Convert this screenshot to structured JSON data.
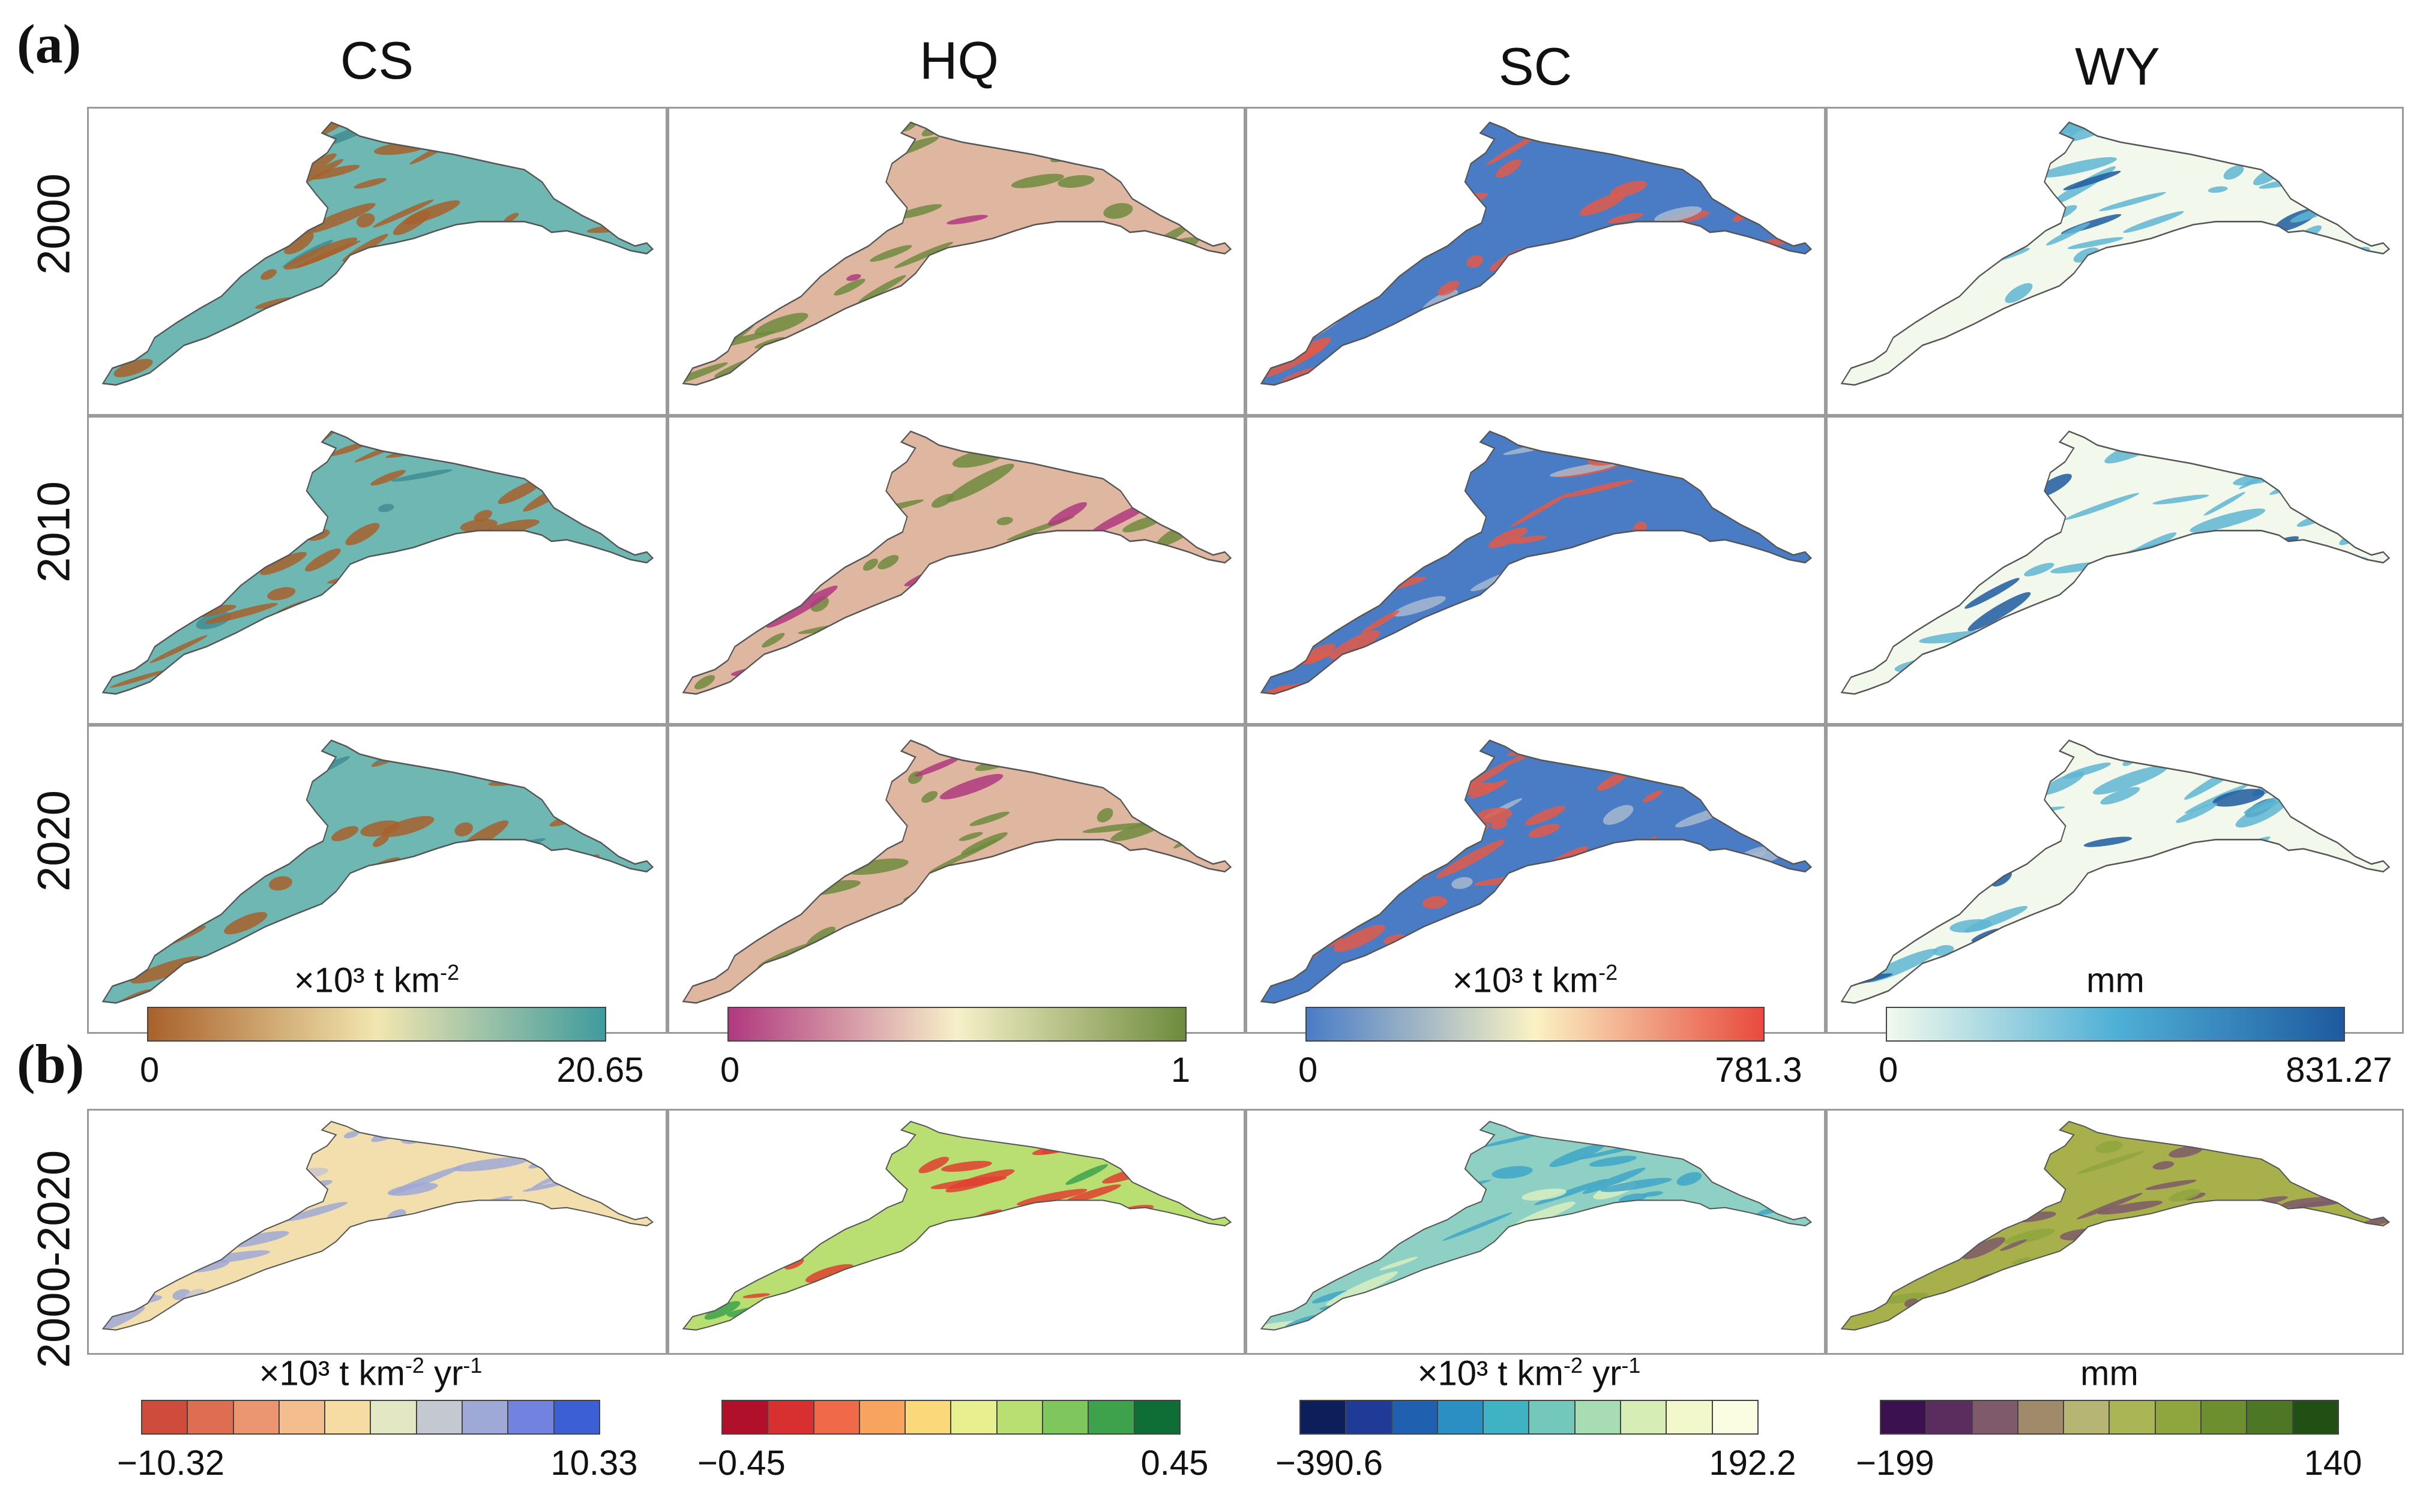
{
  "panel_a_label": "(a)",
  "panel_b_label": "(b)",
  "columns": [
    "CS",
    "HQ",
    "SC",
    "WY"
  ],
  "rows_a": [
    "2000",
    "2010",
    "2020"
  ],
  "row_b": "2000-2020",
  "colorbars_a": [
    {
      "title_main": "×10³ t km",
      "title_sup": "-2",
      "title_tail": "",
      "min": "0",
      "max": "20.65",
      "colors": [
        "#a8612b",
        "#f2e6b0",
        "#3f9b9e"
      ]
    },
    {
      "title_main": "",
      "title_sup": "",
      "title_tail": "",
      "min": "0",
      "max": "1",
      "colors": [
        "#b0387f",
        "#f6f0c9",
        "#6e8b3d"
      ]
    },
    {
      "title_main": "×10³ t km",
      "title_sup": "-2",
      "title_tail": "",
      "min": "0",
      "max": "781.3",
      "colors": [
        "#4a7cc6",
        "#faf2c4",
        "#e84a3e"
      ]
    },
    {
      "title_main": "mm",
      "title_sup": "",
      "title_tail": "",
      "min": "0",
      "max": "831.27",
      "colors": [
        "#f2f9ec",
        "#4fb0d6",
        "#1e5aa0"
      ]
    }
  ],
  "colorbars_b": [
    {
      "title_main": "×10³ t km",
      "title_sup": "-2",
      "title_tail": " yr",
      "title_sup2": "-1",
      "min": "−10.32",
      "max": "10.33",
      "colors": [
        "#cf4b3c",
        "#de6e52",
        "#eb9670",
        "#f3bd8e",
        "#f6dba3",
        "#e4e7c4",
        "#c4c8d0",
        "#9ea9d8",
        "#7283df",
        "#3c5fd6"
      ]
    },
    {
      "title_main": "",
      "title_sup": "",
      "title_tail": "",
      "title_sup2": "",
      "min": "−0.45",
      "max": "0.45",
      "colors": [
        "#b0102a",
        "#d83030",
        "#f06a4a",
        "#f9a45e",
        "#fbd97a",
        "#e7ef8f",
        "#b9df73",
        "#7fc65c",
        "#3ea24c",
        "#0f6e36"
      ]
    },
    {
      "title_main": "×10³ t km",
      "title_sup": "-2",
      "title_tail": " yr",
      "title_sup2": "-1",
      "min": "−390.6",
      "max": "192.2",
      "colors": [
        "#0d1f5a",
        "#1f3a97",
        "#1f61b0",
        "#2b8fc3",
        "#3fb3c4",
        "#73c8bb",
        "#a8dcb3",
        "#d6edb6",
        "#f3f8cc",
        "#fbfde3"
      ]
    },
    {
      "title_main": "mm",
      "title_sup": "",
      "title_tail": "",
      "title_sup2": "",
      "min": "−199",
      "max": "140",
      "colors": [
        "#3b1150",
        "#5a2d5e",
        "#7e5a6a",
        "#a08a6a",
        "#b7b574",
        "#aab655",
        "#8fa63e",
        "#6e8f2f",
        "#4d7625",
        "#224f14"
      ]
    }
  ],
  "map_colors_a": {
    "CS": {
      "base": "#6fb7b2",
      "patch": "#a8612b",
      "accent": "#3f8e92"
    },
    "HQ": {
      "base": "#dfb7a0",
      "patch": "#6e8b3d",
      "accent": "#b0387f"
    },
    "SC": {
      "base": "#4a7cc6",
      "patch": "#e05a48",
      "accent": "#a7b8cf"
    },
    "WY": {
      "base": "#f2f9ec",
      "patch": "#5fb6d2",
      "accent": "#1e5aa0"
    }
  },
  "map_colors_b": {
    "CS": {
      "base": "#f3dfae",
      "patch": "#9fa9d6",
      "accent": "#c9c6cf"
    },
    "HQ": {
      "base": "#b9df73",
      "patch": "#e04030",
      "accent": "#3ea24c"
    },
    "SC": {
      "base": "#8fd0c4",
      "patch": "#3fa6c8",
      "accent": "#d8efc0"
    },
    "WY": {
      "base": "#a8b04c",
      "patch": "#7e5a6a",
      "accent": "#8fa63e"
    }
  }
}
